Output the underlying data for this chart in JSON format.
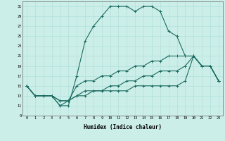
{
  "xlabel": "Humidex (Indice chaleur)",
  "ylabel": "",
  "bg_color": "#cceee8",
  "line_color": "#1a6b60",
  "grid_color": "#aaddd8",
  "xmin": -0.5,
  "xmax": 23.5,
  "ymin": 9,
  "ymax": 32,
  "yticks": [
    9,
    11,
    13,
    15,
    17,
    19,
    21,
    23,
    25,
    27,
    29,
    31
  ],
  "xticks": [
    0,
    1,
    2,
    3,
    4,
    5,
    6,
    7,
    8,
    9,
    10,
    11,
    12,
    13,
    14,
    15,
    16,
    17,
    18,
    19,
    20,
    21,
    22,
    23
  ],
  "series": [
    [
      15,
      13,
      13,
      13,
      11,
      11,
      17,
      24,
      27,
      29,
      31,
      31,
      31,
      30,
      31,
      31,
      30,
      26,
      25,
      21,
      21,
      19,
      19,
      16
    ],
    [
      15,
      13,
      13,
      13,
      11,
      12,
      15,
      16,
      16,
      17,
      17,
      18,
      18,
      19,
      19,
      20,
      20,
      21,
      21,
      21,
      21,
      19,
      19,
      16
    ],
    [
      15,
      13,
      13,
      13,
      12,
      12,
      13,
      14,
      14,
      14,
      15,
      15,
      16,
      16,
      17,
      17,
      18,
      18,
      18,
      19,
      21,
      19,
      19,
      16
    ],
    [
      15,
      13,
      13,
      13,
      12,
      12,
      13,
      13,
      14,
      14,
      14,
      14,
      14,
      15,
      15,
      15,
      15,
      15,
      15,
      16,
      21,
      19,
      19,
      16
    ]
  ]
}
